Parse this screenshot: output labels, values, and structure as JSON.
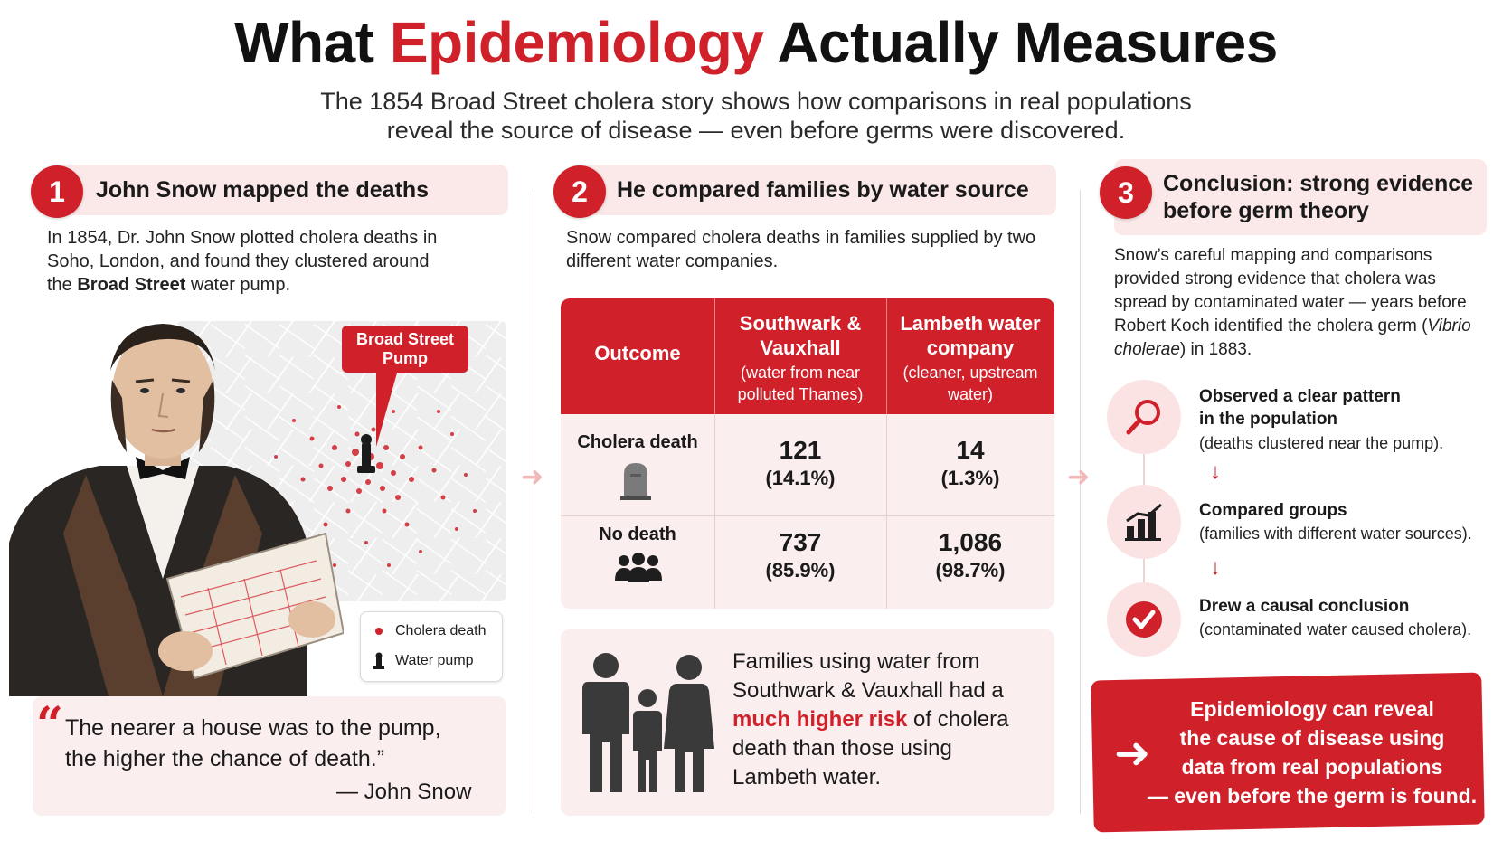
{
  "title": {
    "pre": "What ",
    "accent": "Epidemiology",
    "post": " Actually Measures"
  },
  "subtitle": {
    "line1": "The 1854 Broad Street cholera story shows how comparisons in real populations",
    "line2": "reveal the source of disease — even before germs were discovered."
  },
  "colors": {
    "accent": "#d0202a",
    "panel": "#fbeeee",
    "header_panel": "#fbe8e8"
  },
  "section1": {
    "number": "1",
    "title": "John Snow mapped the deaths",
    "text_pre": "In 1854, Dr. John Snow plotted cholera deaths in Soho, London, and found they clustered around the ",
    "text_bold": "Broad Street",
    "text_post": " water pump.",
    "callout": "Broad Street Pump",
    "legend": {
      "death": "Cholera death",
      "pump": "Water pump"
    },
    "quote_mark": "“",
    "quote_line1": "The nearer a house was to the pump,",
    "quote_line2": "the higher the chance of death.”",
    "quote_author": "— John Snow"
  },
  "section2": {
    "number": "2",
    "title": "He compared families by water source",
    "text": "Snow compared cholera deaths in families supplied by two different water companies.",
    "table": {
      "col0": "Outcome",
      "col1_title": "Southwark & Vauxhall",
      "col1_sub": "(water from near polluted Thames)",
      "col2_title": "Lambeth water company",
      "col2_sub": "(cleaner, upstream water)",
      "rows": [
        {
          "label": "Cholera death",
          "icon": "tombstone-icon",
          "v1": "121",
          "p1": "(14.1%)",
          "v2": "14",
          "p2": "(1.3%)"
        },
        {
          "label": "No death",
          "icon": "people-group-icon",
          "v1": "737",
          "p1": "(85.9%)",
          "v2": "1,086",
          "p2": "(98.7%)"
        }
      ]
    },
    "family_pre": "Families using water from Southwark & Vauxhall had a ",
    "family_hl": "much higher risk",
    "family_post": " of cholera death than those using Lambeth water."
  },
  "section3": {
    "number": "3",
    "title_line1": "Conclusion: strong evidence",
    "title_line2": "before germ theory",
    "text_pre": "Snow’s careful mapping and comparisons provided strong evidence that cholera was spread by contaminated water — years before Robert Koch identified the cholera germ (",
    "text_italic": "Vibrio cholerae",
    "text_post": ") in 1883.",
    "steps": [
      {
        "icon": "magnifier-icon",
        "title1": "Observed a clear pattern",
        "title2": "in the population",
        "desc": "(deaths clustered near the pump)."
      },
      {
        "icon": "bar-chart-icon",
        "title1": "Compared groups",
        "title2": "",
        "desc": "(families with different water sources)."
      },
      {
        "icon": "checkmark-icon",
        "title1": "Drew a causal conclusion",
        "title2": "",
        "desc": "(contaminated water caused cholera)."
      }
    ],
    "banner_line1": "Epidemiology can reveal",
    "banner_line2": "the cause of disease using",
    "banner_line3": "data from real populations",
    "banner_line4": "— even before the germ is found."
  }
}
